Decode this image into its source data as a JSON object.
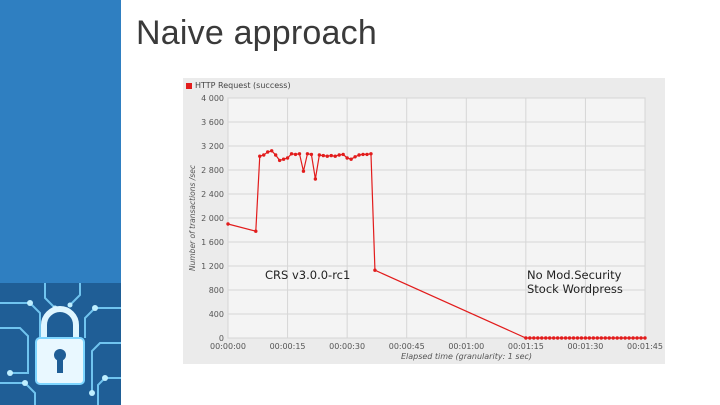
{
  "slide": {
    "title": "Naive approach"
  },
  "colors": {
    "sidebar": "#2f7fc1",
    "series": "#e21c1c",
    "chart_background": "#ebebeb"
  },
  "chart_data": {
    "type": "line",
    "title": "",
    "xlabel": "Elapsed time (granularity: 1 sec)",
    "ylabel": "Number of transactions /sec",
    "xlim": [
      0,
      105
    ],
    "ylim": [
      0,
      4000
    ],
    "x_ticks": [
      0,
      15,
      30,
      45,
      60,
      75,
      90,
      105
    ],
    "x_tick_labels": [
      "00:00:00",
      "00:00:15",
      "00:00:30",
      "00:00:45",
      "00:01:00",
      "00:01:15",
      "00:01:30",
      "00:01:45"
    ],
    "y_ticks": [
      0,
      400,
      800,
      1200,
      1600,
      2000,
      2400,
      2800,
      3200,
      3600,
      4000
    ],
    "y_tick_labels": [
      "0",
      "400",
      "800",
      "1 200",
      "1 600",
      "2 000",
      "2 400",
      "2 800",
      "3 200",
      "3 600",
      "4 000"
    ],
    "grid": true,
    "legend_position": "top-left",
    "series": [
      {
        "name": "HTTP Request (success)",
        "x": [
          0,
          7,
          8,
          9,
          10,
          11,
          12,
          13,
          14,
          15,
          16,
          17,
          18,
          19,
          20,
          21,
          22,
          23,
          24,
          25,
          26,
          27,
          28,
          29,
          30,
          31,
          32,
          33,
          34,
          35,
          36,
          37,
          75,
          76,
          77,
          78,
          79,
          80,
          81,
          82,
          83,
          84,
          85,
          86,
          87,
          88,
          89,
          90,
          91,
          92,
          93,
          94,
          95,
          96,
          97,
          98,
          99,
          100,
          101,
          102,
          103,
          104,
          105
        ],
        "y": [
          1900,
          1780,
          3030,
          3050,
          3100,
          3120,
          3050,
          2960,
          2980,
          3000,
          3070,
          3060,
          3070,
          2780,
          3070,
          3060,
          2650,
          3050,
          3040,
          3030,
          3040,
          3030,
          3050,
          3060,
          3000,
          2980,
          3020,
          3050,
          3060,
          3060,
          3070,
          1130,
          0,
          0,
          0,
          0,
          0,
          0,
          0,
          0,
          0,
          0,
          0,
          0,
          0,
          0,
          0,
          0,
          0,
          0,
          0,
          0,
          0,
          0,
          0,
          0,
          0,
          0,
          0,
          0,
          0,
          0,
          0
        ]
      }
    ],
    "annotations": {
      "crs": "CRS v3.0.0-rc1",
      "nomod_line1": "No Mod.Security",
      "nomod_line2": "Stock Wordpress"
    }
  }
}
